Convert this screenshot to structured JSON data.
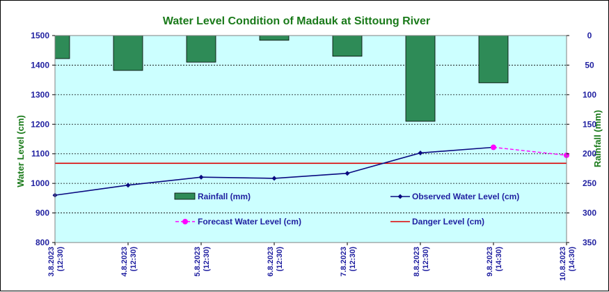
{
  "chart_data": {
    "type": "bar+line",
    "title": "Water Level Condition of Madauk at Sittoung River",
    "ylabel_left": "Water Level (cm)",
    "ylabel_right": "Rainfall (mm)",
    "ylim_left": [
      800,
      1500
    ],
    "yticks_left": [
      "1500",
      "1400",
      "1300",
      "1200",
      "1100",
      "1000",
      "900",
      "800"
    ],
    "ylim_right": [
      0,
      350
    ],
    "right_axis_inverted": true,
    "yticks_right": [
      "0",
      "50",
      "100",
      "150",
      "200",
      "250",
      "300",
      "350"
    ],
    "categories": [
      [
        "3.8.2023",
        "(12:30)"
      ],
      [
        "4.8.2023",
        "(12:30)"
      ],
      [
        "5.8.2023",
        "(12:30)"
      ],
      [
        "6.8.2023",
        "(12:30)"
      ],
      [
        "7.8.2023",
        "(12:30)"
      ],
      [
        "8.8.2023",
        "(12:30)"
      ],
      [
        "9.8.2023",
        "(14:30)"
      ],
      [
        "10.8.2023",
        "(14:30)"
      ]
    ],
    "series": [
      {
        "name": "Rainfall (mm)",
        "type": "bar",
        "axis": "right",
        "color": "#2e8b57",
        "values": [
          39,
          59,
          45,
          8,
          35,
          145,
          80,
          null
        ]
      },
      {
        "name": "Observed Water Level (cm)",
        "type": "line",
        "axis": "left",
        "color": "#0a0a80",
        "values": [
          960,
          994,
          1021,
          1017,
          1034,
          1103,
          1122,
          null
        ]
      },
      {
        "name": "Forecast Water Level (cm)",
        "type": "line-dashed",
        "axis": "left",
        "color": "#ff00ff",
        "values": [
          null,
          null,
          null,
          null,
          null,
          null,
          1122,
          1095
        ]
      },
      {
        "name": "Danger Level (cm)",
        "type": "hline",
        "axis": "left",
        "color": "#dd0000",
        "value": 1068
      }
    ],
    "grid": "horizontal-dashed",
    "plot_background": "#ccffff",
    "legend_placement": "inside-bottom"
  }
}
